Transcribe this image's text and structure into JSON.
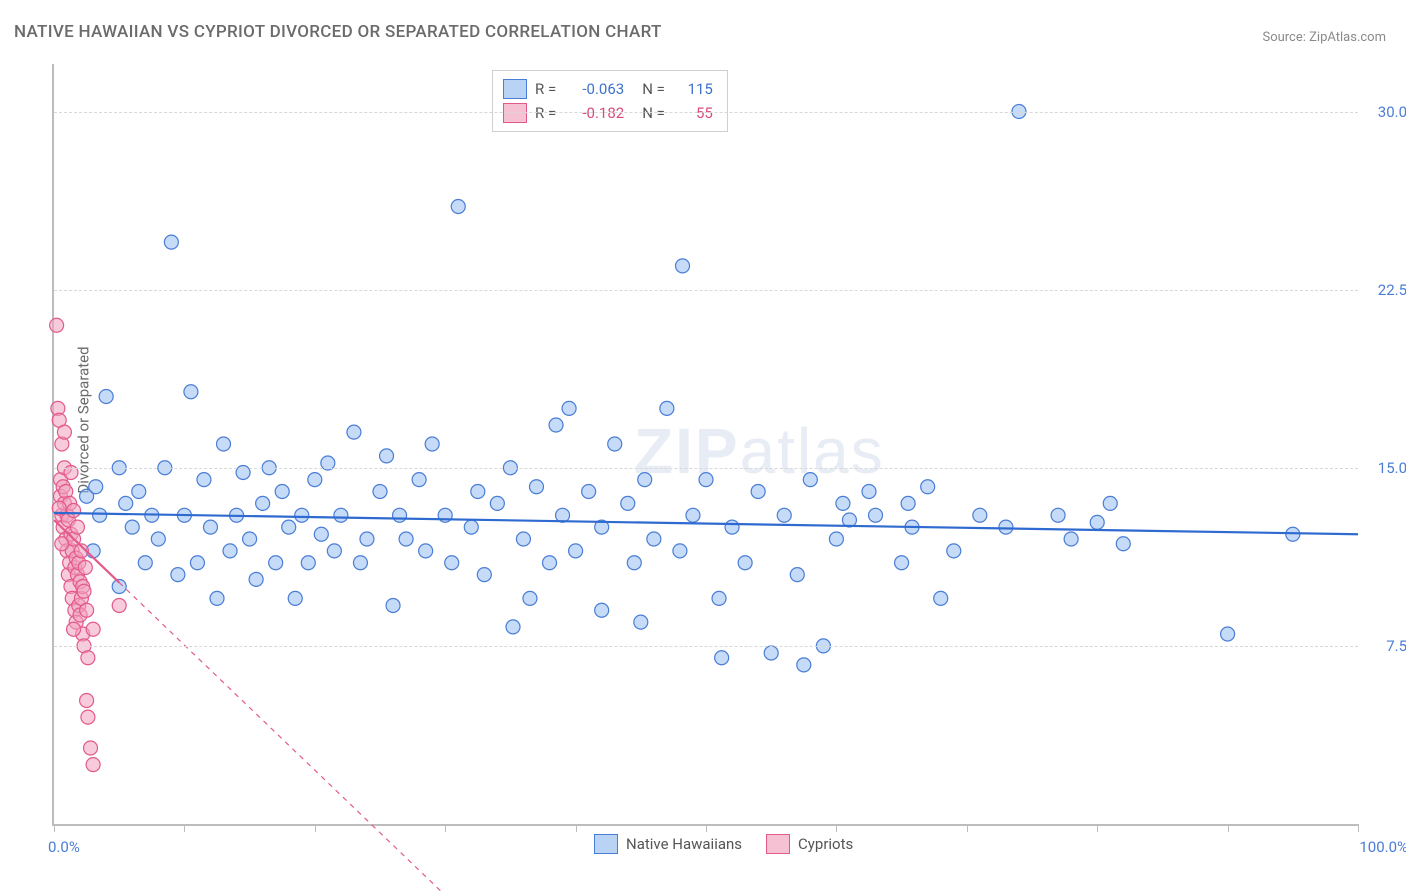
{
  "title": "NATIVE HAWAIIAN VS CYPRIOT DIVORCED OR SEPARATED CORRELATION CHART",
  "source": "Source: ZipAtlas.com",
  "watermark": "ZIPatlas",
  "chart": {
    "type": "scatter",
    "ylabel": "Divorced or Separated",
    "xlim": [
      0,
      100
    ],
    "ylim": [
      0,
      32
    ],
    "xlim_labels": {
      "min": "0.0%",
      "max": "100.0%"
    },
    "ytick_values": [
      7.5,
      15.0,
      22.5,
      30.0
    ],
    "ytick_labels": [
      "7.5%",
      "15.0%",
      "22.5%",
      "30.0%"
    ],
    "xtick_values": [
      0,
      10,
      20,
      30,
      40,
      50,
      60,
      70,
      80,
      90,
      100
    ],
    "background_color": "#ffffff",
    "grid_color": "#d8d8d8",
    "axis_color": "#bdbdbd",
    "marker_radius": 7,
    "marker_stroke_width": 1.2,
    "trend_line_width": 2.2,
    "legend_corr": [
      {
        "swatch_fill": "#b9d3f4",
        "swatch_stroke": "#4a7dd6",
        "r": "-0.063",
        "n": "115",
        "value_color": "#3f72c9"
      },
      {
        "swatch_fill": "#f7c1d4",
        "swatch_stroke": "#e35a8a",
        "r": "-0.182",
        "n": "55",
        "value_color": "#d84a7a"
      }
    ],
    "legend_bottom": [
      {
        "label": "Native Hawaiians",
        "swatch_fill": "#b9d3f4",
        "swatch_stroke": "#4a7dd6"
      },
      {
        "label": "Cypriots",
        "swatch_fill": "#f7c1d4",
        "swatch_stroke": "#e35a8a"
      }
    ],
    "series": [
      {
        "name": "Native Hawaiians",
        "marker_fill": "rgba(150,190,240,0.55)",
        "marker_stroke": "#4a7dd6",
        "trend_color": "#2f6ad0",
        "trend_dash": "none",
        "trend": {
          "x1": 0,
          "y1": 13.1,
          "x2": 100,
          "y2": 12.2
        },
        "points": [
          [
            2.5,
            13.8
          ],
          [
            3,
            11.5
          ],
          [
            3.2,
            14.2
          ],
          [
            3.5,
            13
          ],
          [
            4,
            18
          ],
          [
            5,
            15
          ],
          [
            5,
            10
          ],
          [
            5.5,
            13.5
          ],
          [
            6,
            12.5
          ],
          [
            6.5,
            14
          ],
          [
            7,
            11
          ],
          [
            7.5,
            13
          ],
          [
            8,
            12
          ],
          [
            8.5,
            15
          ],
          [
            9,
            24.5
          ],
          [
            9.5,
            10.5
          ],
          [
            10,
            13
          ],
          [
            10.5,
            18.2
          ],
          [
            11,
            11
          ],
          [
            11.5,
            14.5
          ],
          [
            12,
            12.5
          ],
          [
            12.5,
            9.5
          ],
          [
            13,
            16
          ],
          [
            13.5,
            11.5
          ],
          [
            14,
            13
          ],
          [
            14.5,
            14.8
          ],
          [
            15,
            12
          ],
          [
            15.5,
            10.3
          ],
          [
            16,
            13.5
          ],
          [
            16.5,
            15
          ],
          [
            17,
            11
          ],
          [
            17.5,
            14
          ],
          [
            18,
            12.5
          ],
          [
            18.5,
            9.5
          ],
          [
            19,
            13
          ],
          [
            19.5,
            11
          ],
          [
            20,
            14.5
          ],
          [
            20.5,
            12.2
          ],
          [
            21,
            15.2
          ],
          [
            21.5,
            11.5
          ],
          [
            22,
            13
          ],
          [
            23,
            16.5
          ],
          [
            23.5,
            11
          ],
          [
            24,
            12
          ],
          [
            25,
            14
          ],
          [
            25.5,
            15.5
          ],
          [
            26,
            9.2
          ],
          [
            26.5,
            13
          ],
          [
            27,
            12
          ],
          [
            28,
            14.5
          ],
          [
            28.5,
            11.5
          ],
          [
            29,
            16
          ],
          [
            30,
            13
          ],
          [
            30.5,
            11
          ],
          [
            31,
            26
          ],
          [
            32,
            12.5
          ],
          [
            32.5,
            14
          ],
          [
            33,
            10.5
          ],
          [
            34,
            13.5
          ],
          [
            35,
            15
          ],
          [
            35.2,
            8.3
          ],
          [
            36,
            12
          ],
          [
            36.5,
            9.5
          ],
          [
            37,
            14.2
          ],
          [
            38,
            11
          ],
          [
            38.5,
            16.8
          ],
          [
            39,
            13
          ],
          [
            39.5,
            17.5
          ],
          [
            40,
            11.5
          ],
          [
            41,
            14
          ],
          [
            42,
            9
          ],
          [
            42,
            12.5
          ],
          [
            43,
            16
          ],
          [
            44,
            13.5
          ],
          [
            44.5,
            11
          ],
          [
            45,
            8.5
          ],
          [
            45.3,
            14.5
          ],
          [
            46,
            12
          ],
          [
            47,
            17.5
          ],
          [
            48,
            11.5
          ],
          [
            48.2,
            23.5
          ],
          [
            49,
            13
          ],
          [
            50,
            14.5
          ],
          [
            51,
            9.5
          ],
          [
            51.2,
            7
          ],
          [
            52,
            12.5
          ],
          [
            53,
            11
          ],
          [
            54,
            14
          ],
          [
            55,
            7.2
          ],
          [
            56,
            13
          ],
          [
            57,
            10.5
          ],
          [
            57.5,
            6.7
          ],
          [
            58,
            14.5
          ],
          [
            59,
            7.5
          ],
          [
            60,
            12
          ],
          [
            60.5,
            13.5
          ],
          [
            61,
            12.8
          ],
          [
            62.5,
            14
          ],
          [
            63,
            13
          ],
          [
            65,
            11
          ],
          [
            65.5,
            13.5
          ],
          [
            65.8,
            12.5
          ],
          [
            67,
            14.2
          ],
          [
            68,
            9.5
          ],
          [
            69,
            11.5
          ],
          [
            71,
            13
          ],
          [
            73,
            12.5
          ],
          [
            74,
            30
          ],
          [
            77,
            13
          ],
          [
            78,
            12
          ],
          [
            80,
            12.7
          ],
          [
            81,
            13.5
          ],
          [
            82,
            11.8
          ],
          [
            90,
            8
          ],
          [
            95,
            12.2
          ]
        ]
      },
      {
        "name": "Cypriots",
        "marker_fill": "rgba(240,160,190,0.55)",
        "marker_stroke": "#e35a8a",
        "trend_color": "#e35a8a",
        "trend_dash": "solid_then_dash",
        "trend": {
          "x1": 0,
          "y1": 12.8,
          "x2": 30,
          "y2": -3
        },
        "trend_solid_end_x": 5,
        "points": [
          [
            0.2,
            21
          ],
          [
            0.3,
            17.5
          ],
          [
            0.4,
            17
          ],
          [
            0.5,
            14.5
          ],
          [
            0.5,
            13.8
          ],
          [
            0.6,
            16
          ],
          [
            0.6,
            13
          ],
          [
            0.7,
            14.2
          ],
          [
            0.7,
            12.5
          ],
          [
            0.8,
            15
          ],
          [
            0.8,
            13.5
          ],
          [
            0.9,
            12
          ],
          [
            0.9,
            14
          ],
          [
            1,
            11.5
          ],
          [
            1,
            13
          ],
          [
            1.1,
            12.8
          ],
          [
            1.1,
            10.5
          ],
          [
            1.2,
            11
          ],
          [
            1.2,
            13.5
          ],
          [
            1.3,
            12.2
          ],
          [
            1.3,
            10
          ],
          [
            1.4,
            11.5
          ],
          [
            1.4,
            9.5
          ],
          [
            1.5,
            12
          ],
          [
            1.5,
            13.2
          ],
          [
            1.6,
            10.8
          ],
          [
            1.6,
            9
          ],
          [
            1.7,
            11.2
          ],
          [
            1.7,
            8.5
          ],
          [
            1.8,
            10.5
          ],
          [
            1.8,
            12.5
          ],
          [
            1.9,
            9.2
          ],
          [
            1.9,
            11
          ],
          [
            2,
            8.8
          ],
          [
            2,
            10.2
          ],
          [
            2.1,
            9.5
          ],
          [
            2.1,
            11.5
          ],
          [
            2.2,
            8
          ],
          [
            2.2,
            10
          ],
          [
            2.3,
            9.8
          ],
          [
            2.3,
            7.5
          ],
          [
            2.4,
            10.8
          ],
          [
            2.5,
            5.2
          ],
          [
            2.5,
            9
          ],
          [
            2.6,
            4.5
          ],
          [
            2.8,
            3.2
          ],
          [
            3,
            2.5
          ],
          [
            3,
            8.2
          ],
          [
            0.4,
            13.3
          ],
          [
            0.6,
            11.8
          ],
          [
            0.8,
            16.5
          ],
          [
            1.3,
            14.8
          ],
          [
            1.5,
            8.2
          ],
          [
            2.6,
            7
          ],
          [
            5,
            9.2
          ]
        ]
      }
    ]
  }
}
